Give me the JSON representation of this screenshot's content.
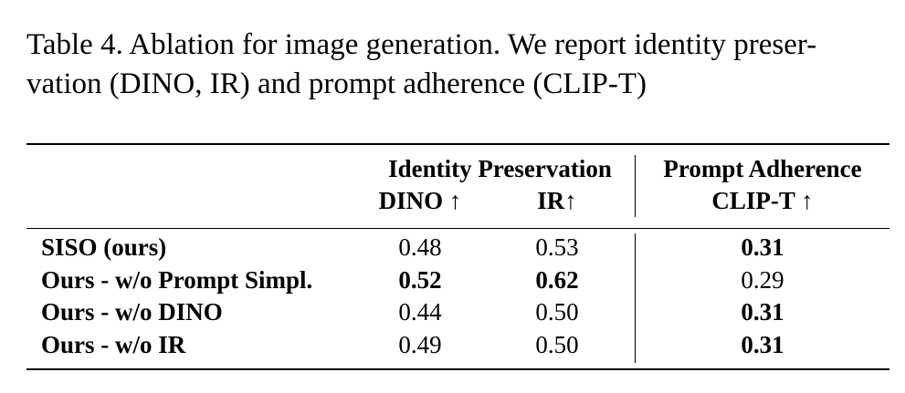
{
  "caption": "Table 4. Ablation for image generation. We report identity preser- vation (DINO, IR) and prompt adherence (CLIP-T)",
  "table": {
    "group_headers": {
      "identity": "Identity Preservation",
      "prompt": "Prompt Adherence"
    },
    "columns": {
      "dino": "DINO ↑",
      "ir": "IR↑",
      "clip": "CLIP-T ↑"
    },
    "rows": [
      {
        "name": "SISO (ours)",
        "dino": "0.48",
        "ir": "0.53",
        "clip": "0.31",
        "bold": {
          "dino": false,
          "ir": false,
          "clip": true
        }
      },
      {
        "name": "Ours - w/o Prompt Simpl.",
        "dino": "0.52",
        "ir": "0.62",
        "clip": "0.29",
        "bold": {
          "dino": true,
          "ir": true,
          "clip": false
        }
      },
      {
        "name": "Ours - w/o DINO",
        "dino": "0.44",
        "ir": "0.50",
        "clip": "0.31",
        "bold": {
          "dino": false,
          "ir": false,
          "clip": true
        }
      },
      {
        "name": "Ours - w/o IR",
        "dino": "0.49",
        "ir": "0.50",
        "clip": "0.31",
        "bold": {
          "dino": false,
          "ir": false,
          "clip": true
        }
      }
    ]
  }
}
